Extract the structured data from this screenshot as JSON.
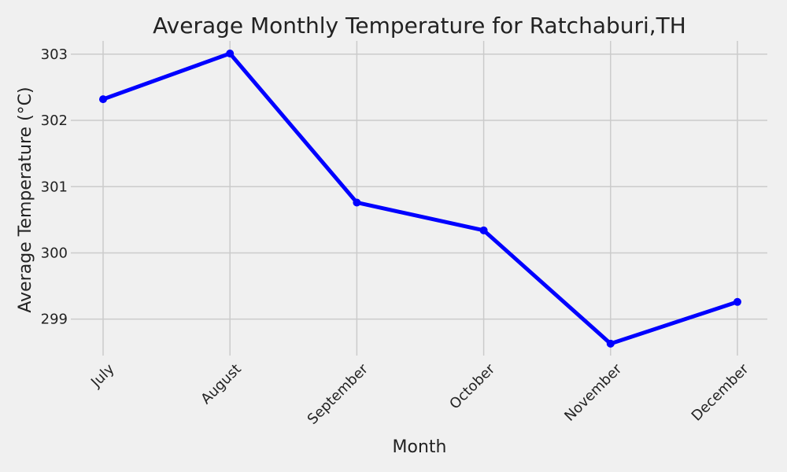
{
  "chart_data": {
    "type": "line",
    "title": "Average Monthly Temperature for Ratchaburi,TH",
    "xlabel": "Month",
    "ylabel": "Average Temperature (°C)",
    "categories": [
      "July",
      "August",
      "September",
      "October",
      "November",
      "December"
    ],
    "series": [
      {
        "name": "Average Temperature",
        "color": "#0000ff",
        "values": [
          302.32,
          303.01,
          300.76,
          300.34,
          298.63,
          299.26
        ]
      }
    ],
    "yticks": [
      299,
      300,
      301,
      302,
      303
    ],
    "ylim": [
      298.45,
      303.2
    ],
    "grid": true,
    "background": "#f0f0f0"
  }
}
